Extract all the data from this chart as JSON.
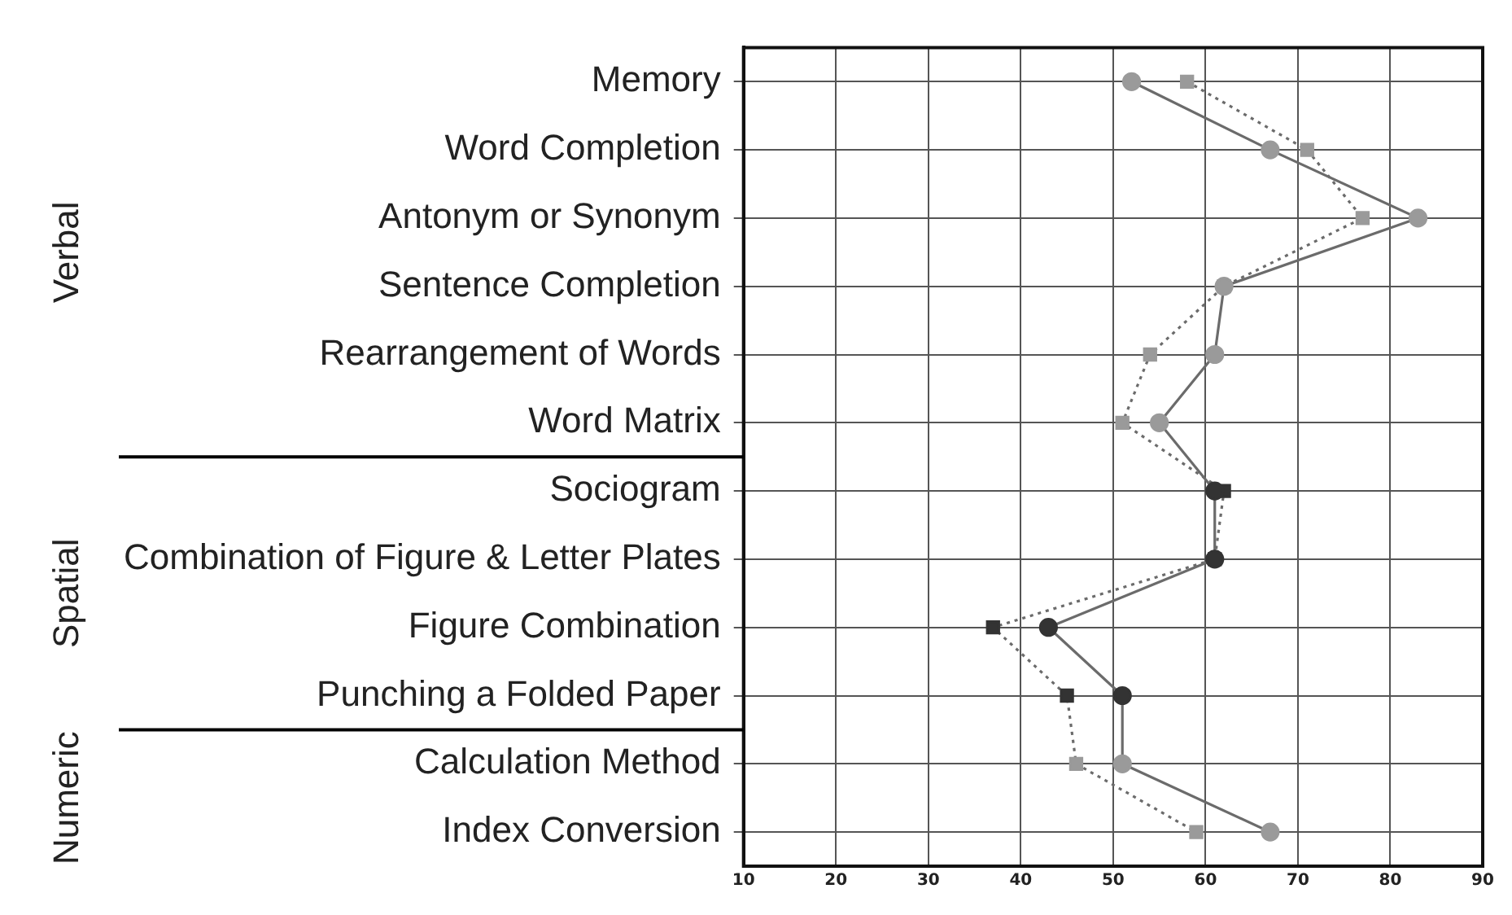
{
  "chart_data": {
    "type": "line",
    "orientation": "horizontal",
    "categories": [
      "Memory",
      "Word Completion",
      "Antonym or Synonym",
      "Sentence Completion",
      "Rearrangement of Words",
      "Word Matrix",
      "Sociogram",
      "Combination of Figure & Letter Plates",
      "Figure Combination",
      "Punching a Folded Paper",
      "Calculation Method",
      "Index Conversion"
    ],
    "series": [
      {
        "color": "#6b6b6b",
        "marker": "circle",
        "line_style": "solid",
        "colors": [
          "#9a9a9a",
          "#9a9a9a",
          "#9a9a9a",
          "#9a9a9a",
          "#9a9a9a",
          "#9a9a9a",
          "#333333",
          "#333333",
          "#333333",
          "#333333",
          "#9a9a9a",
          "#9a9a9a"
        ],
        "values": [
          52,
          67,
          83,
          62,
          61,
          55,
          61,
          61,
          43,
          51,
          51,
          67
        ]
      },
      {
        "color": "#6b6b6b",
        "marker": "square",
        "line_style": "dotted",
        "colors": [
          "#9a9a9a",
          "#9a9a9a",
          "#9a9a9a",
          "#9a9a9a",
          "#9a9a9a",
          "#9a9a9a",
          "#333333",
          "#333333",
          "#333333",
          "#333333",
          "#9a9a9a",
          "#9a9a9a"
        ],
        "values": [
          58,
          71,
          77,
          62,
          54,
          51,
          62,
          61,
          37,
          45,
          46,
          59
        ]
      }
    ],
    "xlim": [
      10,
      90
    ],
    "xticks": [
      10,
      20,
      30,
      40,
      50,
      60,
      70,
      80,
      90
    ],
    "grid": true,
    "legend": false,
    "annotations": [
      "Verbal",
      "Spatial",
      "Numeric"
    ]
  }
}
